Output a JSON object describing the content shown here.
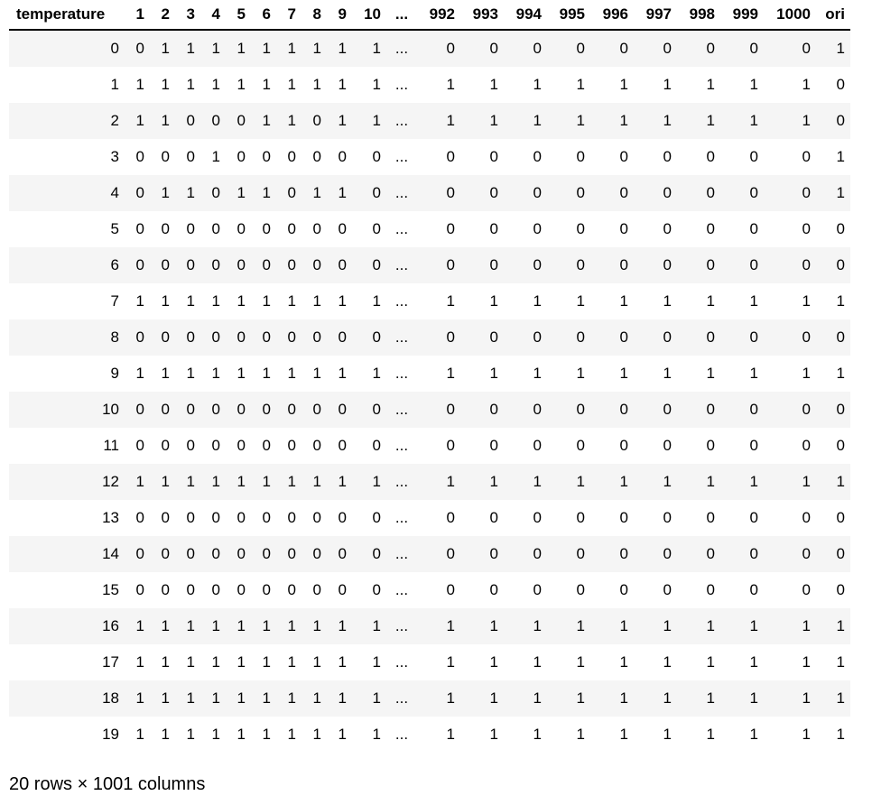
{
  "table": {
    "columns": [
      "temperature",
      "1",
      "2",
      "3",
      "4",
      "5",
      "6",
      "7",
      "8",
      "9",
      "10",
      "...",
      "992",
      "993",
      "994",
      "995",
      "996",
      "997",
      "998",
      "999",
      "1000",
      "ori"
    ],
    "rows": [
      [
        "0",
        "0",
        "1",
        "1",
        "1",
        "1",
        "1",
        "1",
        "1",
        "1",
        "1",
        "...",
        "0",
        "0",
        "0",
        "0",
        "0",
        "0",
        "0",
        "0",
        "0",
        "1"
      ],
      [
        "1",
        "1",
        "1",
        "1",
        "1",
        "1",
        "1",
        "1",
        "1",
        "1",
        "1",
        "...",
        "1",
        "1",
        "1",
        "1",
        "1",
        "1",
        "1",
        "1",
        "1",
        "0"
      ],
      [
        "2",
        "1",
        "1",
        "0",
        "0",
        "0",
        "1",
        "1",
        "0",
        "1",
        "1",
        "...",
        "1",
        "1",
        "1",
        "1",
        "1",
        "1",
        "1",
        "1",
        "1",
        "0"
      ],
      [
        "3",
        "0",
        "0",
        "0",
        "1",
        "0",
        "0",
        "0",
        "0",
        "0",
        "0",
        "...",
        "0",
        "0",
        "0",
        "0",
        "0",
        "0",
        "0",
        "0",
        "0",
        "1"
      ],
      [
        "4",
        "0",
        "1",
        "1",
        "0",
        "1",
        "1",
        "0",
        "1",
        "1",
        "0",
        "...",
        "0",
        "0",
        "0",
        "0",
        "0",
        "0",
        "0",
        "0",
        "0",
        "1"
      ],
      [
        "5",
        "0",
        "0",
        "0",
        "0",
        "0",
        "0",
        "0",
        "0",
        "0",
        "0",
        "...",
        "0",
        "0",
        "0",
        "0",
        "0",
        "0",
        "0",
        "0",
        "0",
        "0"
      ],
      [
        "6",
        "0",
        "0",
        "0",
        "0",
        "0",
        "0",
        "0",
        "0",
        "0",
        "0",
        "...",
        "0",
        "0",
        "0",
        "0",
        "0",
        "0",
        "0",
        "0",
        "0",
        "0"
      ],
      [
        "7",
        "1",
        "1",
        "1",
        "1",
        "1",
        "1",
        "1",
        "1",
        "1",
        "1",
        "...",
        "1",
        "1",
        "1",
        "1",
        "1",
        "1",
        "1",
        "1",
        "1",
        "1"
      ],
      [
        "8",
        "0",
        "0",
        "0",
        "0",
        "0",
        "0",
        "0",
        "0",
        "0",
        "0",
        "...",
        "0",
        "0",
        "0",
        "0",
        "0",
        "0",
        "0",
        "0",
        "0",
        "0"
      ],
      [
        "9",
        "1",
        "1",
        "1",
        "1",
        "1",
        "1",
        "1",
        "1",
        "1",
        "1",
        "...",
        "1",
        "1",
        "1",
        "1",
        "1",
        "1",
        "1",
        "1",
        "1",
        "1"
      ],
      [
        "10",
        "0",
        "0",
        "0",
        "0",
        "0",
        "0",
        "0",
        "0",
        "0",
        "0",
        "...",
        "0",
        "0",
        "0",
        "0",
        "0",
        "0",
        "0",
        "0",
        "0",
        "0"
      ],
      [
        "11",
        "0",
        "0",
        "0",
        "0",
        "0",
        "0",
        "0",
        "0",
        "0",
        "0",
        "...",
        "0",
        "0",
        "0",
        "0",
        "0",
        "0",
        "0",
        "0",
        "0",
        "0"
      ],
      [
        "12",
        "1",
        "1",
        "1",
        "1",
        "1",
        "1",
        "1",
        "1",
        "1",
        "1",
        "...",
        "1",
        "1",
        "1",
        "1",
        "1",
        "1",
        "1",
        "1",
        "1",
        "1"
      ],
      [
        "13",
        "0",
        "0",
        "0",
        "0",
        "0",
        "0",
        "0",
        "0",
        "0",
        "0",
        "...",
        "0",
        "0",
        "0",
        "0",
        "0",
        "0",
        "0",
        "0",
        "0",
        "0"
      ],
      [
        "14",
        "0",
        "0",
        "0",
        "0",
        "0",
        "0",
        "0",
        "0",
        "0",
        "0",
        "...",
        "0",
        "0",
        "0",
        "0",
        "0",
        "0",
        "0",
        "0",
        "0",
        "0"
      ],
      [
        "15",
        "0",
        "0",
        "0",
        "0",
        "0",
        "0",
        "0",
        "0",
        "0",
        "0",
        "...",
        "0",
        "0",
        "0",
        "0",
        "0",
        "0",
        "0",
        "0",
        "0",
        "0"
      ],
      [
        "16",
        "1",
        "1",
        "1",
        "1",
        "1",
        "1",
        "1",
        "1",
        "1",
        "1",
        "...",
        "1",
        "1",
        "1",
        "1",
        "1",
        "1",
        "1",
        "1",
        "1",
        "1"
      ],
      [
        "17",
        "1",
        "1",
        "1",
        "1",
        "1",
        "1",
        "1",
        "1",
        "1",
        "1",
        "...",
        "1",
        "1",
        "1",
        "1",
        "1",
        "1",
        "1",
        "1",
        "1",
        "1"
      ],
      [
        "18",
        "1",
        "1",
        "1",
        "1",
        "1",
        "1",
        "1",
        "1",
        "1",
        "1",
        "...",
        "1",
        "1",
        "1",
        "1",
        "1",
        "1",
        "1",
        "1",
        "1",
        "1"
      ],
      [
        "19",
        "1",
        "1",
        "1",
        "1",
        "1",
        "1",
        "1",
        "1",
        "1",
        "1",
        "...",
        "1",
        "1",
        "1",
        "1",
        "1",
        "1",
        "1",
        "1",
        "1",
        "1"
      ]
    ]
  },
  "footer": {
    "shape_text": "20 rows × 1001 columns"
  },
  "colors": {
    "stripe": "#f5f5f5",
    "header_rule": "#000000"
  }
}
